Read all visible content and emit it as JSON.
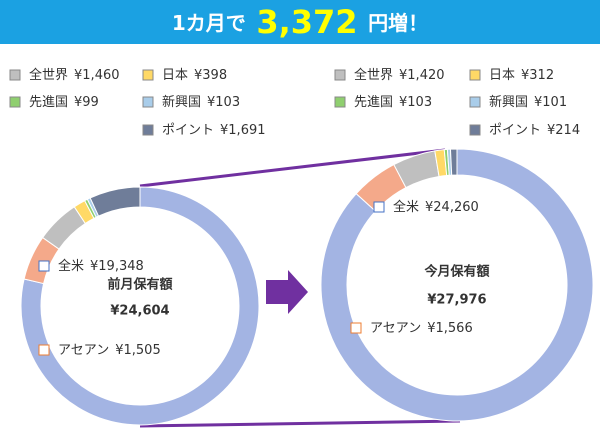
{
  "header": {
    "prefix": "1カ月で",
    "amount": "3,372",
    "suffix": "円増！"
  },
  "chart_data": [
    {
      "type": "pie",
      "title": "前月保有額",
      "total": "¥24,604",
      "categories": [
        "全米",
        "アセアン",
        "全世界",
        "日本",
        "先進国",
        "新興国",
        "ポイント"
      ],
      "values": [
        19348,
        1505,
        1460,
        398,
        99,
        103,
        1691
      ],
      "value_labels": [
        "¥19,348",
        "¥1,505",
        "¥1,460",
        "¥398",
        "¥99",
        "¥103",
        "¥1,691"
      ],
      "colors": [
        "#a3b4e3",
        "#f4a98a",
        "#bfbfbf",
        "#ffd966",
        "#8fcf6f",
        "#a9cdea",
        "#6f7d99"
      ]
    },
    {
      "type": "pie",
      "title": "今月保有額",
      "total": "¥27,976",
      "categories": [
        "全米",
        "アセアン",
        "全世界",
        "日本",
        "先進国",
        "新興国",
        "ポイント"
      ],
      "values": [
        24260,
        1566,
        1420,
        312,
        103,
        101,
        214
      ],
      "value_labels": [
        "¥24,260",
        "¥1,566",
        "¥1,420",
        "¥312",
        "¥103",
        "¥101",
        "¥214"
      ],
      "colors": [
        "#a3b4e3",
        "#f4a98a",
        "#bfbfbf",
        "#ffd966",
        "#8fcf6f",
        "#a9cdea",
        "#6f7d99"
      ]
    }
  ]
}
